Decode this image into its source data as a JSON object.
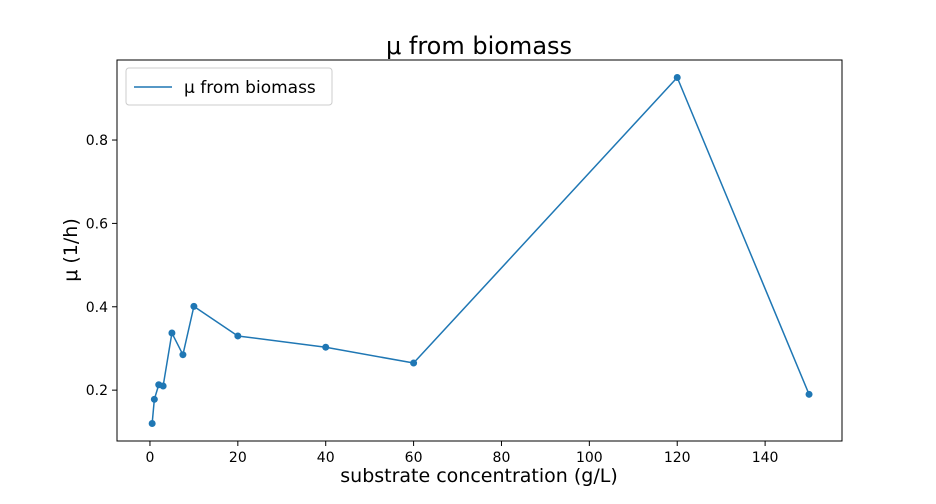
{
  "chart_data": {
    "type": "line",
    "title": "μ  from biomass",
    "xlabel": "substrate concentration (g/L)",
    "ylabel": "μ  (1/h)",
    "xlim": [
      -7.5,
      157.5
    ],
    "ylim": [
      0.078,
      0.992
    ],
    "xticks": [
      0,
      20,
      40,
      60,
      80,
      100,
      120,
      140
    ],
    "yticks": [
      0.2,
      0.4,
      0.6,
      0.8
    ],
    "grid": false,
    "legend_position": "upper-left",
    "series": [
      {
        "name": "μ from biomass",
        "color": "#1f77b4",
        "marker": "circle",
        "x": [
          0.5,
          1,
          2,
          3,
          5,
          7.5,
          10,
          20,
          40,
          60,
          120,
          150
        ],
        "y": [
          0.12,
          0.178,
          0.213,
          0.21,
          0.337,
          0.285,
          0.401,
          0.33,
          0.303,
          0.265,
          0.95,
          0.19
        ]
      }
    ]
  }
}
